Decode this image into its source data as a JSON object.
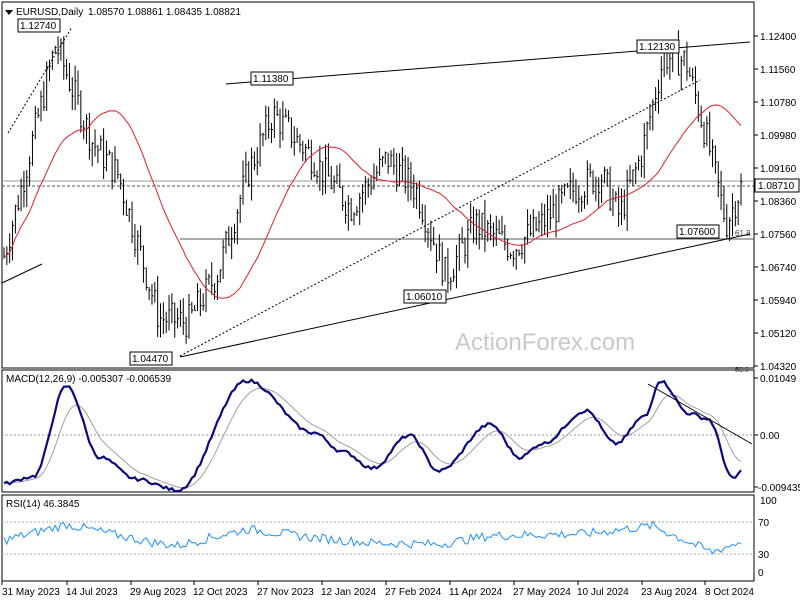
{
  "header": {
    "symbol_label": "EURUSD,Daily",
    "ohlc_text": "1.08570  1.08861  1.08435  1.08821"
  },
  "watermark": "ActionForex.com",
  "price_panel": {
    "y_ticks": [
      "1.12400",
      "1.11560",
      "1.10780",
      "1.09980",
      "1.09160",
      "1.08360",
      "1.07560",
      "1.06740",
      "1.05940",
      "1.05120",
      "1.04320"
    ],
    "current_price": "1.08710",
    "fib_label": "61.8",
    "bottom_edge_label": "50.0",
    "annotations": [
      "1.12740",
      "1.11380",
      "1.12130",
      "1.06010",
      "1.07600",
      "1.04470"
    ]
  },
  "macd_panel": {
    "title": "MACD(12,26,9) -0.005307 -0.006539",
    "y_ticks": [
      "0.01049",
      "0.00",
      "-0.009435"
    ]
  },
  "rsi_panel": {
    "title": "RSI(14) 46.3845",
    "y_ticks": [
      "100",
      "70",
      "30",
      "0"
    ]
  },
  "x_axis": {
    "labels": [
      "31 May 2023",
      "14 Jul 2023",
      "29 Aug 2023",
      "12 Oct 2023",
      "27 Nov 2023",
      "12 Jan 2024",
      "27 Feb 2024",
      "11 Apr 2024",
      "27 May 2024",
      "10 Jul 2024",
      "23 Aug 2024",
      "8 Oct 2024"
    ]
  },
  "colors": {
    "candles": "#000000",
    "sma": "#e0202a",
    "macd_line": "#0a0a80",
    "macd_signal": "#a0a0a0",
    "rsi_line": "#1e90ff",
    "levels": "#999999"
  },
  "chart_data": [
    {
      "type": "line",
      "title": "EURUSD,Daily",
      "series": [
        {
          "name": "EURUSD",
          "x": [
            "31 May 2023",
            "14 Jul 2023",
            "29 Aug 2023",
            "12 Oct 2023",
            "27 Nov 2023",
            "12 Jan 2024",
            "27 Feb 2024",
            "11 Apr 2024",
            "27 May 2024",
            "10 Jul 2024",
            "23 Aug 2024",
            "8 Oct 2024"
          ],
          "values": [
            1.07,
            1.122,
            1.084,
            1.054,
            1.094,
            1.095,
            1.082,
            1.072,
            1.085,
            1.085,
            1.118,
            1.096
          ]
        }
      ],
      "ylim": [
        1.0432,
        1.124
      ],
      "annotations": [
        {
          "label": "1.12740",
          "x": "18 Jul 2023"
        },
        {
          "label": "1.11380",
          "x": "28 Dec 2023"
        },
        {
          "label": "1.12130",
          "x": "25 Sep 2024"
        },
        {
          "label": "1.06010",
          "x": "16 Apr 2024"
        },
        {
          "label": "1.07600",
          "x": "3 Oct 2024"
        },
        {
          "label": "1.04470",
          "x": "3 Oct 2023"
        }
      ],
      "current_price": 1.0871
    },
    {
      "type": "line",
      "title": "MACD(12,26,9) -0.005307 -0.006539",
      "series": [
        {
          "values": [
            -0.0088,
            0.009,
            -0.0085,
            -0.01,
            0.01,
            -0.003,
            -0.006,
            -0.0065,
            0.0045,
            -0.0015,
            0.01,
            -0.0065
          ]
        }
      ],
      "ylim": [
        -0.009435,
        0.01049
      ]
    },
    {
      "type": "line",
      "title": "RSI(14) 46.3845",
      "series": [
        {
          "values": [
            48,
            72,
            45,
            40,
            65,
            52,
            44,
            42,
            55,
            58,
            70,
            46
          ]
        }
      ],
      "ylim": [
        0,
        100
      ]
    }
  ]
}
